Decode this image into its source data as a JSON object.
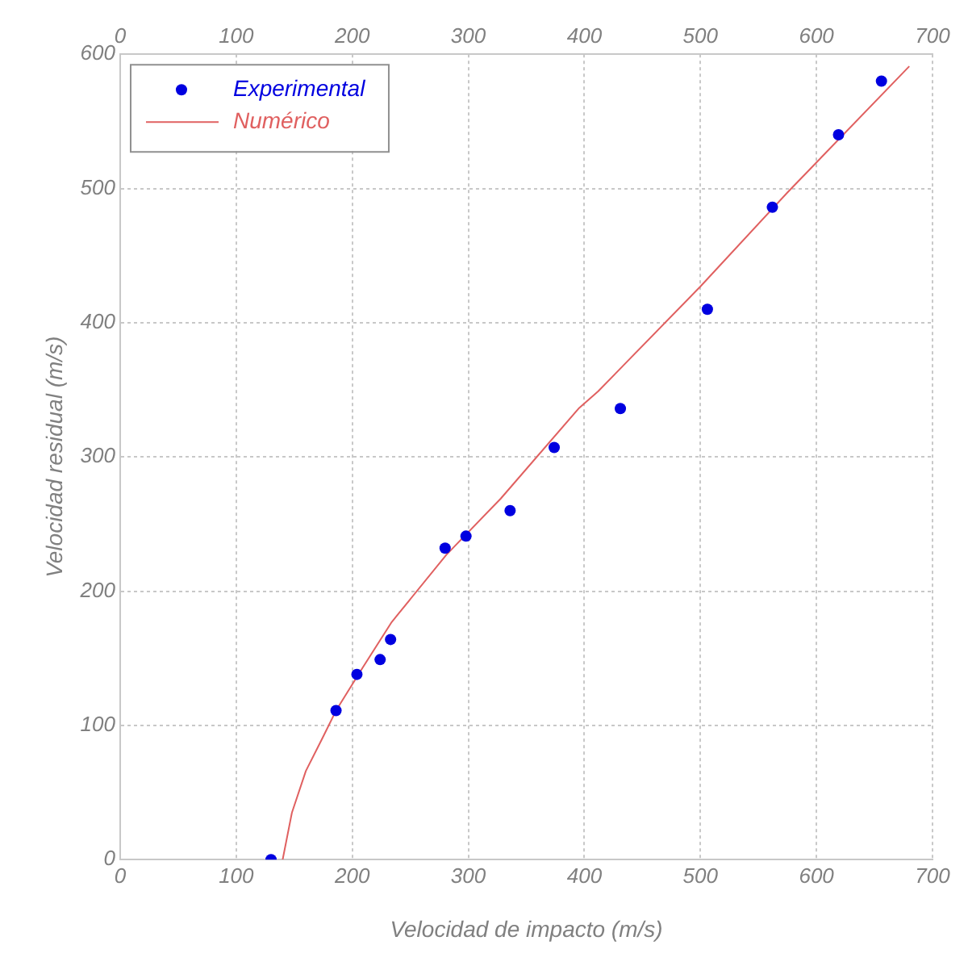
{
  "chart_data": {
    "type": "scatter",
    "xlabel": "Velocidad de impacto (m/s)",
    "ylabel": "Velocidad residual (m/s)",
    "xlim": [
      0,
      700
    ],
    "xticks": [
      0,
      100,
      200,
      300,
      400,
      500,
      600,
      700
    ],
    "x2lim": [
      0,
      700
    ],
    "x2ticks": [
      0,
      100,
      200,
      300,
      400,
      500,
      600,
      700
    ],
    "ylim": [
      0,
      600
    ],
    "yticks": [
      0,
      100,
      200,
      300,
      400,
      500,
      600
    ],
    "grid": true,
    "legend": "top left",
    "series": [
      {
        "name": "Experimental",
        "type": "scatter",
        "marker": "circle",
        "color": "#0000e0",
        "x": [
          130,
          186,
          204,
          224,
          233,
          280,
          298,
          336,
          374,
          431,
          506,
          562,
          619,
          656
        ],
        "values": [
          0,
          111,
          138,
          149,
          164,
          232,
          241,
          260,
          307,
          336,
          410,
          486,
          540,
          580
        ]
      },
      {
        "name": "Numérico",
        "type": "line",
        "marker": "none",
        "line_style": "solid",
        "color": "#e06060",
        "x": [
          140,
          148,
          160,
          174,
          186,
          209,
          234,
          281,
          328,
          395,
          412,
          500,
          575,
          680
        ],
        "values": [
          0,
          35,
          66,
          90,
          111,
          143,
          177,
          227,
          269,
          336,
          349,
          427,
          497,
          591
        ]
      }
    ]
  }
}
